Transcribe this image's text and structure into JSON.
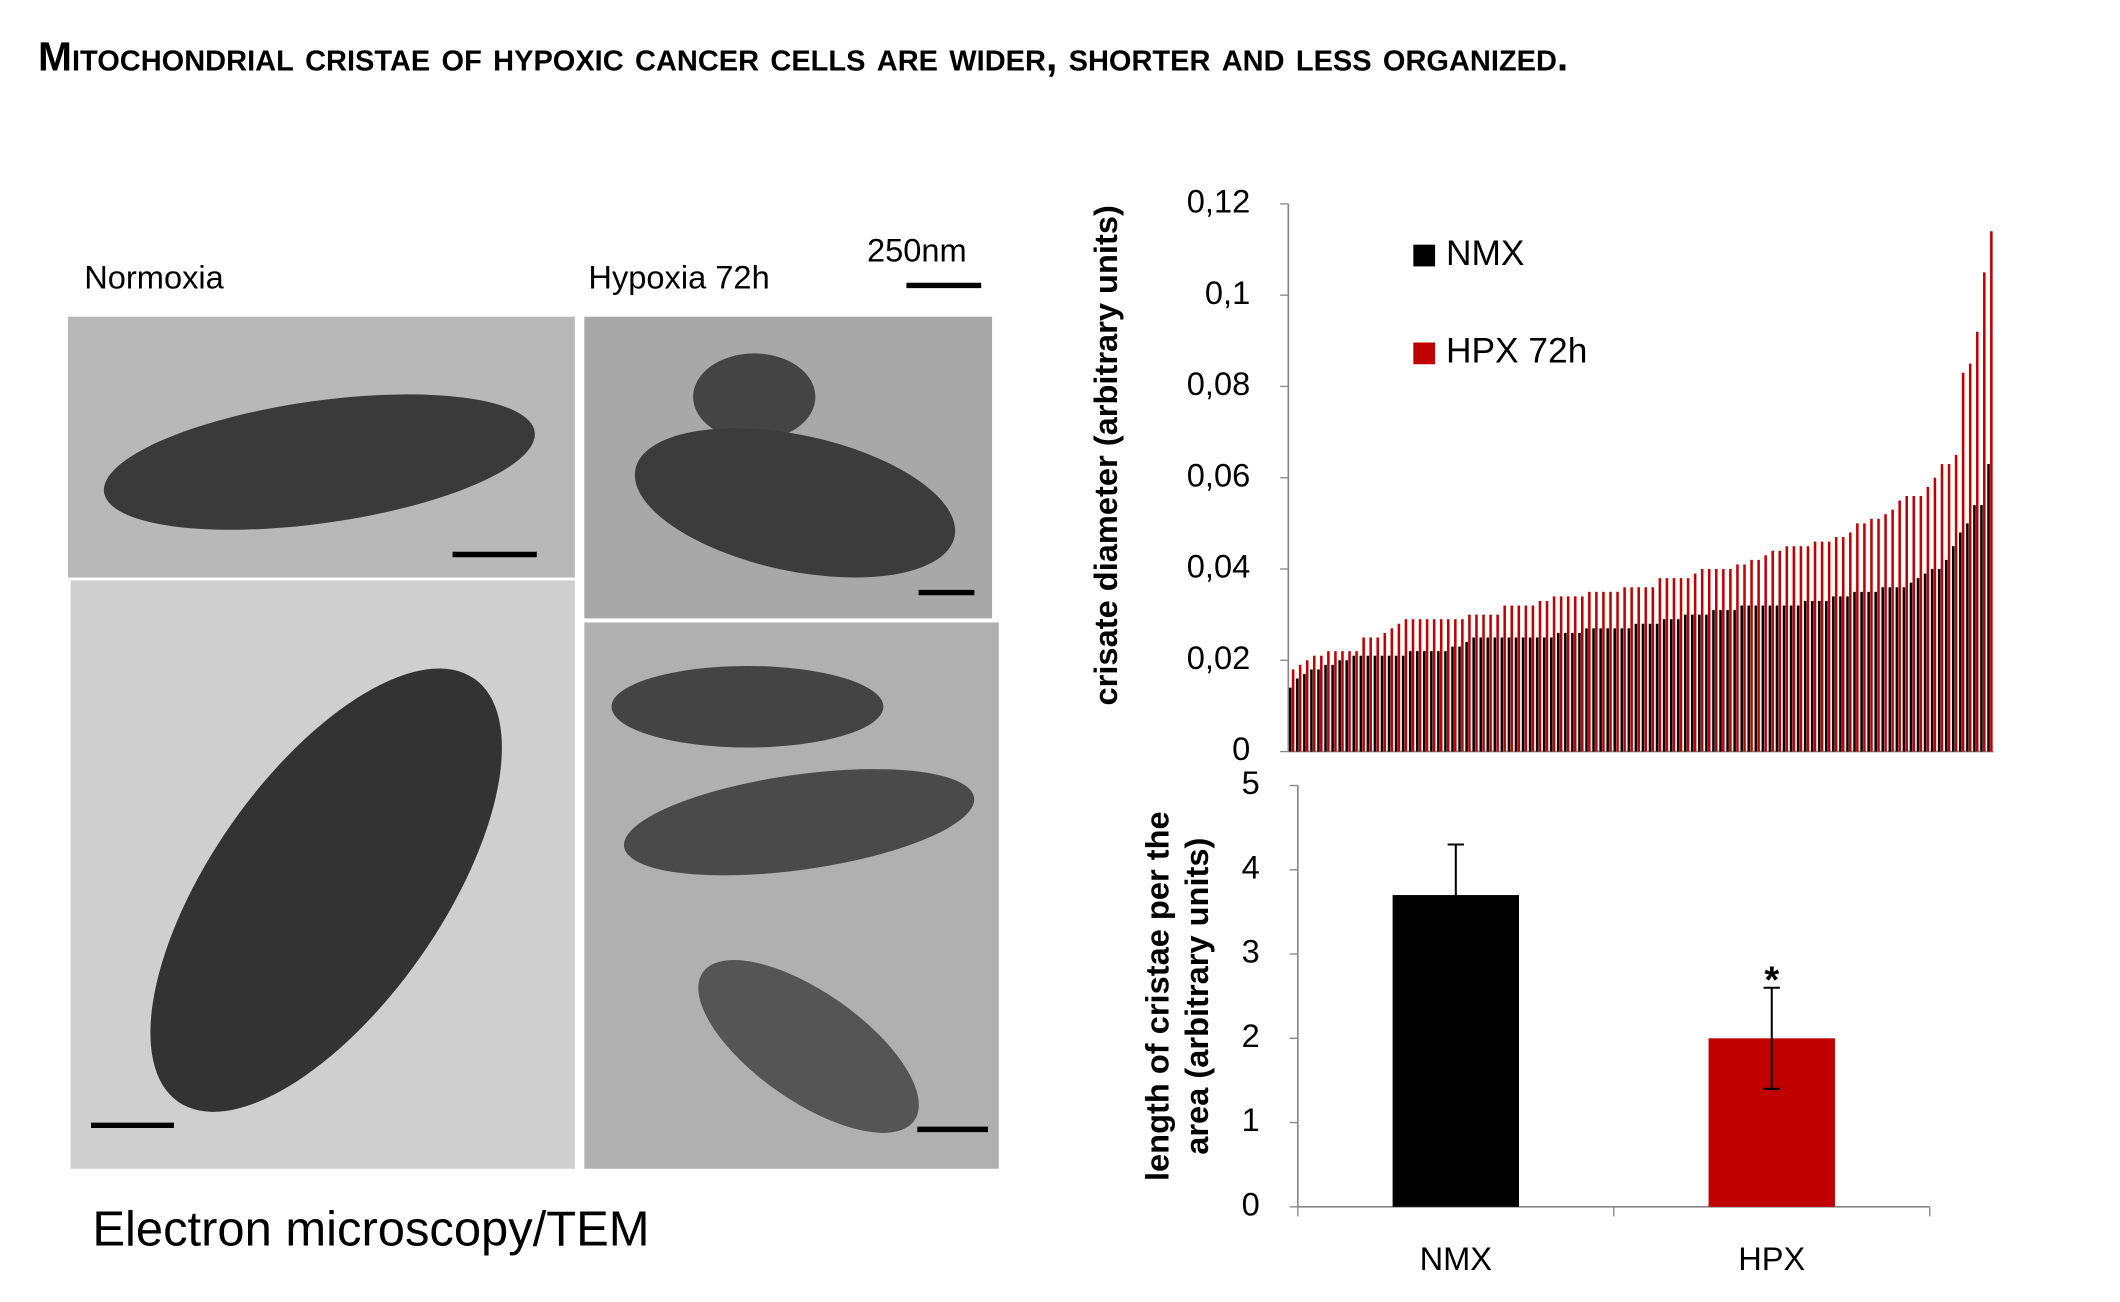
{
  "title": "Mitochondrial cristae of hypoxic cancer cells are wider, shorter and less organized.",
  "images": {
    "normoxia_label": "Normoxia",
    "hypoxia_label": "Hypoxia 72h",
    "scale_label": "250nm",
    "caption": "Electron microscopy/TEM"
  },
  "chart_data": [
    {
      "type": "bar",
      "ylabel": "crisate  diameter (arbitrary units)",
      "categories": [
        null,
        null,
        null,
        null,
        null,
        null,
        null,
        null,
        null,
        null,
        null,
        null,
        null,
        null,
        null,
        null,
        null,
        null,
        null,
        null,
        null,
        null,
        null,
        null,
        null,
        null,
        null,
        null,
        null,
        null,
        null,
        null,
        null,
        null,
        null,
        null,
        null,
        null,
        null,
        null,
        null,
        null,
        null,
        null,
        null,
        null,
        null,
        null,
        null,
        null,
        null,
        null,
        null,
        null,
        null,
        null,
        null,
        null,
        null,
        null,
        null,
        null,
        null,
        null,
        null,
        null,
        null,
        null,
        null,
        null,
        null,
        null,
        null,
        null,
        null,
        null,
        null,
        null,
        null,
        null,
        null,
        null,
        null,
        null,
        null,
        null,
        null,
        null,
        null,
        null,
        null,
        null,
        null,
        null,
        null,
        null,
        null,
        null,
        null,
        null
      ],
      "series": [
        {
          "name": "NMX",
          "color": "#000000",
          "values": [
            0.014,
            0.016,
            0.017,
            0.018,
            0.018,
            0.019,
            0.019,
            0.02,
            0.02,
            0.021,
            0.021,
            0.021,
            0.021,
            0.021,
            0.021,
            0.021,
            0.021,
            0.022,
            0.022,
            0.022,
            0.022,
            0.022,
            0.022,
            0.023,
            0.023,
            0.024,
            0.025,
            0.025,
            0.025,
            0.025,
            0.025,
            0.025,
            0.025,
            0.025,
            0.025,
            0.025,
            0.025,
            0.025,
            0.026,
            0.026,
            0.026,
            0.026,
            0.027,
            0.027,
            0.027,
            0.027,
            0.027,
            0.027,
            0.027,
            0.028,
            0.028,
            0.028,
            0.028,
            0.029,
            0.029,
            0.029,
            0.03,
            0.03,
            0.03,
            0.03,
            0.031,
            0.031,
            0.031,
            0.031,
            0.032,
            0.032,
            0.032,
            0.032,
            0.032,
            0.032,
            0.032,
            0.032,
            0.032,
            0.033,
            0.033,
            0.033,
            0.033,
            0.034,
            0.034,
            0.034,
            0.035,
            0.035,
            0.035,
            0.035,
            0.036,
            0.036,
            0.036,
            0.036,
            0.037,
            0.038,
            0.039,
            0.04,
            0.04,
            0.042,
            0.045,
            0.048,
            0.05,
            0.054,
            0.054,
            0.063
          ]
        },
        {
          "name": "HPX 72h",
          "color": "#c00000",
          "values": [
            0.018,
            0.019,
            0.02,
            0.021,
            0.021,
            0.022,
            0.022,
            0.022,
            0.022,
            0.022,
            0.025,
            0.025,
            0.025,
            0.026,
            0.027,
            0.028,
            0.029,
            0.029,
            0.029,
            0.029,
            0.029,
            0.029,
            0.029,
            0.029,
            0.029,
            0.03,
            0.03,
            0.03,
            0.03,
            0.03,
            0.032,
            0.032,
            0.032,
            0.032,
            0.032,
            0.033,
            0.033,
            0.034,
            0.034,
            0.034,
            0.034,
            0.034,
            0.035,
            0.035,
            0.035,
            0.035,
            0.035,
            0.036,
            0.036,
            0.036,
            0.036,
            0.036,
            0.038,
            0.038,
            0.038,
            0.038,
            0.038,
            0.039,
            0.04,
            0.04,
            0.04,
            0.04,
            0.04,
            0.041,
            0.041,
            0.042,
            0.042,
            0.043,
            0.044,
            0.044,
            0.045,
            0.045,
            0.045,
            0.045,
            0.046,
            0.046,
            0.046,
            0.047,
            0.047,
            0.048,
            0.05,
            0.05,
            0.051,
            0.051,
            0.052,
            0.053,
            0.055,
            0.056,
            0.056,
            0.056,
            0.058,
            0.06,
            0.063,
            0.063,
            0.065,
            0.083,
            0.085,
            0.092,
            0.105,
            0.114
          ]
        }
      ],
      "ylim": [
        0,
        0.12
      ],
      "yticks": [
        0,
        {
          "value": 0.02,
          "label": "0,02"
        },
        {
          "value": 0.04,
          "label": "0,04"
        },
        {
          "value": 0.06,
          "label": "0,06"
        },
        {
          "value": 0.08,
          "label": "0,08"
        },
        {
          "value": 0.1,
          "label": "0,1"
        },
        {
          "value": 0.12,
          "label": "0,12"
        }
      ],
      "legend": "top-left",
      "grid": false
    },
    {
      "type": "bar",
      "ylabel": "length of cristae per  the area (arbitrary units)",
      "categories": [
        "NMX",
        "HPX"
      ],
      "values": [
        3.7,
        2.0
      ],
      "errors": [
        0.6,
        0.6
      ],
      "colors": [
        "#000000",
        "#c00000"
      ],
      "annotation": "*",
      "ylim": [
        0,
        5
      ],
      "yticks": [
        0,
        1,
        2,
        3,
        4,
        5
      ],
      "grid": false
    }
  ]
}
